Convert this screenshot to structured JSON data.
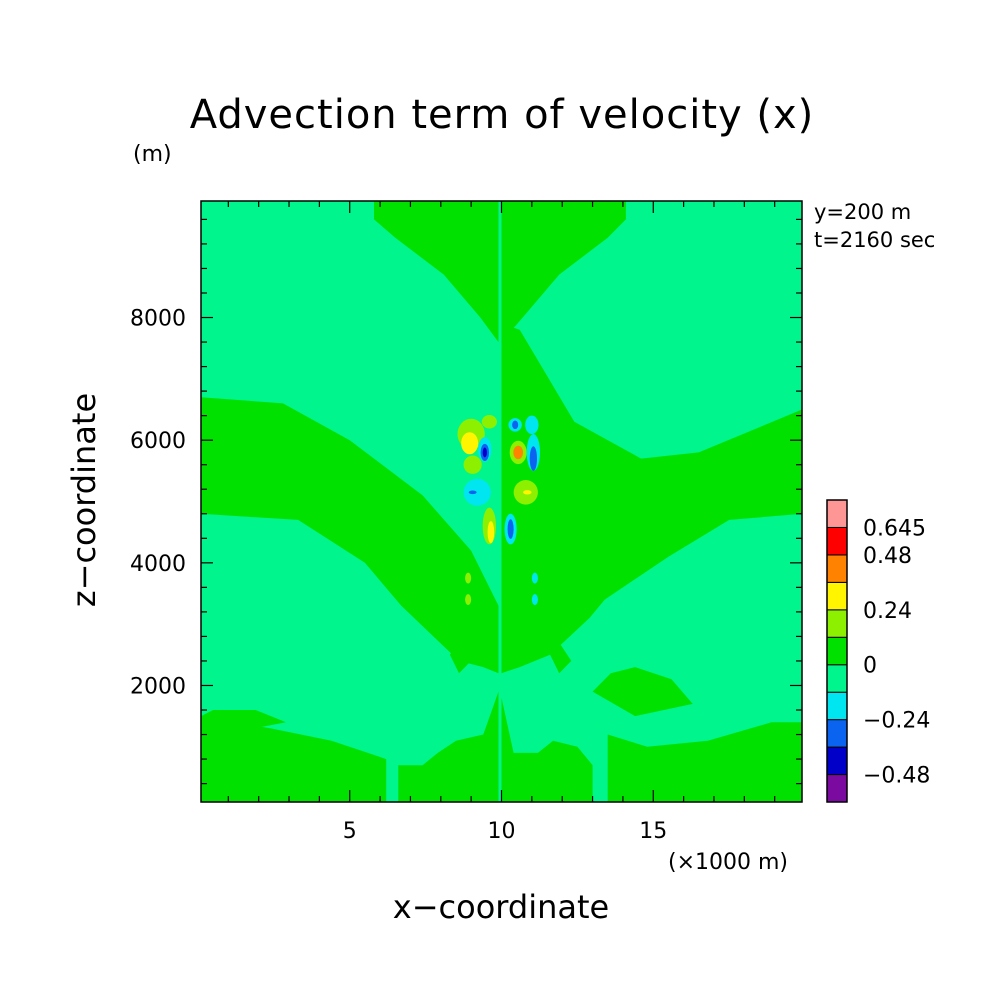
{
  "chart_data": {
    "type": "heatmap",
    "title": "Advection term of velocity (x)",
    "xlabel": "x−coordinate",
    "ylabel": "z−coordinate",
    "x_unit": "(×1000 m)",
    "y_unit": "(m)",
    "annotations": [
      "y=200 m",
      "t=2160 sec"
    ],
    "xlim": [
      0.1,
      19.9
    ],
    "ylim": [
      100,
      9900
    ],
    "x_ticks": [
      5,
      10,
      15
    ],
    "y_ticks": [
      2000,
      4000,
      6000,
      8000
    ],
    "colorbar": {
      "levels": [
        -0.645,
        -0.48,
        -0.36,
        -0.24,
        -0.12,
        0,
        0.12,
        0.24,
        0.36,
        0.48,
        0.645
      ],
      "labels": [
        "0.645",
        "0.48",
        "0.24",
        "0",
        "−0.24",
        "−0.48"
      ],
      "label_values": [
        0.645,
        0.48,
        0.24,
        0,
        -0.24,
        -0.48
      ],
      "colors": [
        "#7a0aa0",
        "#0000c8",
        "#0a64f0",
        "#00e6f0",
        "#00f58c",
        "#00e100",
        "#8cf000",
        "#fff500",
        "#ff8200",
        "#ff0000",
        "#ff9696"
      ]
    },
    "background_level": "#00f58c",
    "regions": [
      {
        "level": "#00e100",
        "points": [
          [
            5.8,
            9900
          ],
          [
            9.9,
            9900
          ],
          [
            9.9,
            7600
          ],
          [
            9.3,
            8000
          ],
          [
            8.1,
            8700
          ],
          [
            6.5,
            9300
          ],
          [
            5.8,
            9600
          ]
        ]
      },
      {
        "level": "#00e100",
        "points": [
          [
            10.0,
            9900
          ],
          [
            14.1,
            9900
          ],
          [
            14.1,
            9600
          ],
          [
            13.5,
            9300
          ],
          [
            11.9,
            8700
          ],
          [
            10.7,
            8000
          ],
          [
            10.0,
            7600
          ]
        ]
      },
      {
        "level": "#00e100",
        "points": [
          [
            10.0,
            7900
          ],
          [
            10.6,
            7800
          ],
          [
            11.2,
            7300
          ],
          [
            12.4,
            6300
          ],
          [
            14.6,
            5700
          ],
          [
            16.5,
            5800
          ],
          [
            19.9,
            6500
          ],
          [
            19.9,
            4800
          ],
          [
            17.5,
            4700
          ],
          [
            15.5,
            4100
          ],
          [
            13.4,
            3400
          ],
          [
            12.9,
            3100
          ],
          [
            11.6,
            2500
          ],
          [
            10.6,
            2300
          ],
          [
            10.0,
            2200
          ]
        ]
      },
      {
        "level": "#00e100",
        "points": [
          [
            0.1,
            6700
          ],
          [
            2.8,
            6600
          ],
          [
            5.0,
            6000
          ],
          [
            7.4,
            5100
          ],
          [
            9.0,
            4200
          ],
          [
            9.9,
            3300
          ],
          [
            9.9,
            2200
          ],
          [
            9.4,
            2300
          ],
          [
            8.6,
            2400
          ],
          [
            6.7,
            3300
          ],
          [
            5.5,
            4000
          ],
          [
            3.3,
            4700
          ],
          [
            0.1,
            4800
          ]
        ]
      },
      {
        "level": "#00e100",
        "points": [
          [
            10.0,
            2200
          ],
          [
            10.0,
            100
          ],
          [
            13.0,
            100
          ],
          [
            13.0,
            700
          ],
          [
            12.5,
            1000
          ],
          [
            11.7,
            1100
          ],
          [
            11.2,
            900
          ],
          [
            10.4,
            900
          ],
          [
            10.0,
            1800
          ]
        ]
      },
      {
        "level": "#00e100",
        "points": [
          [
            6.6,
            100
          ],
          [
            9.9,
            100
          ],
          [
            9.9,
            1900
          ],
          [
            9.4,
            1200
          ],
          [
            8.5,
            1100
          ],
          [
            7.9,
            900
          ],
          [
            7.4,
            700
          ],
          [
            6.6,
            700
          ]
        ]
      },
      {
        "level": "#00e100",
        "points": [
          [
            13.5,
            100
          ],
          [
            19.9,
            100
          ],
          [
            19.9,
            1400
          ],
          [
            18.9,
            1400
          ],
          [
            16.8,
            1100
          ],
          [
            14.8,
            1000
          ],
          [
            13.5,
            1200
          ]
        ]
      },
      {
        "level": "#00e100",
        "points": [
          [
            0.1,
            900
          ],
          [
            0.1,
            1500
          ],
          [
            2.4,
            1300
          ],
          [
            4.4,
            1100
          ],
          [
            6.2,
            800
          ],
          [
            6.2,
            100
          ],
          [
            0.1,
            100
          ]
        ]
      },
      {
        "level": "#00e100",
        "points": [
          [
            0.1,
            1500
          ],
          [
            0.5,
            1600
          ],
          [
            1.9,
            1600
          ],
          [
            2.9,
            1400
          ],
          [
            0.8,
            1200
          ]
        ]
      },
      {
        "level": "#00e100",
        "points": [
          [
            13.0,
            1900
          ],
          [
            13.6,
            2200
          ],
          [
            14.4,
            2300
          ],
          [
            15.6,
            2100
          ],
          [
            16.3,
            1700
          ],
          [
            14.4,
            1500
          ]
        ]
      },
      {
        "level": "#00e100",
        "points": [
          [
            11.6,
            2500
          ],
          [
            11.9,
            2700
          ],
          [
            12.3,
            2400
          ],
          [
            11.9,
            2200
          ]
        ]
      },
      {
        "level": "#00e100",
        "points": [
          [
            8.3,
            2500
          ],
          [
            8.6,
            2700
          ],
          [
            9.0,
            2400
          ],
          [
            8.6,
            2200
          ]
        ]
      },
      {
        "level": "#00e100",
        "points": [
          [
            0.1,
            200
          ],
          [
            5.4,
            200
          ],
          [
            5.6,
            800
          ],
          [
            0.1,
            900
          ]
        ]
      }
    ],
    "blobs": [
      {
        "cx": 9.0,
        "cy": 6100,
        "rx": 0.45,
        "ry": 250,
        "level": "#8cf000"
      },
      {
        "cx": 8.95,
        "cy": 5950,
        "rx": 0.28,
        "ry": 180,
        "level": "#fff500"
      },
      {
        "cx": 9.05,
        "cy": 5600,
        "rx": 0.3,
        "ry": 150,
        "level": "#8cf000"
      },
      {
        "cx": 9.45,
        "cy": 5850,
        "rx": 0.22,
        "ry": 200,
        "level": "#00e6f0"
      },
      {
        "cx": 9.45,
        "cy": 5800,
        "rx": 0.14,
        "ry": 140,
        "level": "#0a64f0"
      },
      {
        "cx": 9.45,
        "cy": 5800,
        "rx": 0.07,
        "ry": 80,
        "level": "#0000c8"
      },
      {
        "cx": 9.6,
        "cy": 6300,
        "rx": 0.25,
        "ry": 110,
        "level": "#8cf000"
      },
      {
        "cx": 10.55,
        "cy": 5800,
        "rx": 0.28,
        "ry": 190,
        "level": "#8cf000"
      },
      {
        "cx": 10.55,
        "cy": 5800,
        "rx": 0.16,
        "ry": 110,
        "level": "#ff8200"
      },
      {
        "cx": 10.45,
        "cy": 6250,
        "rx": 0.22,
        "ry": 110,
        "level": "#00e6f0"
      },
      {
        "cx": 10.45,
        "cy": 6250,
        "rx": 0.1,
        "ry": 70,
        "level": "#0a64f0"
      },
      {
        "cx": 11.05,
        "cy": 5800,
        "rx": 0.22,
        "ry": 300,
        "level": "#00e6f0"
      },
      {
        "cx": 11.05,
        "cy": 5700,
        "rx": 0.12,
        "ry": 200,
        "level": "#0a64f0"
      },
      {
        "cx": 11.0,
        "cy": 6250,
        "rx": 0.22,
        "ry": 150,
        "level": "#00e6f0"
      },
      {
        "cx": 9.2,
        "cy": 5150,
        "rx": 0.45,
        "ry": 220,
        "level": "#00e6f0"
      },
      {
        "cx": 9.05,
        "cy": 5150,
        "rx": 0.13,
        "ry": 30,
        "level": "#0a64f0"
      },
      {
        "cx": 10.8,
        "cy": 5150,
        "rx": 0.4,
        "ry": 200,
        "level": "#8cf000"
      },
      {
        "cx": 10.85,
        "cy": 5150,
        "rx": 0.14,
        "ry": 35,
        "level": "#fff500"
      },
      {
        "cx": 9.6,
        "cy": 4600,
        "rx": 0.22,
        "ry": 300,
        "level": "#8cf000"
      },
      {
        "cx": 9.65,
        "cy": 4500,
        "rx": 0.11,
        "ry": 180,
        "level": "#fff500"
      },
      {
        "cx": 10.3,
        "cy": 4550,
        "rx": 0.2,
        "ry": 250,
        "level": "#00e6f0"
      },
      {
        "cx": 10.3,
        "cy": 4550,
        "rx": 0.1,
        "ry": 160,
        "level": "#0a64f0"
      },
      {
        "cx": 8.9,
        "cy": 3750,
        "rx": 0.1,
        "ry": 90,
        "level": "#8cf000"
      },
      {
        "cx": 8.9,
        "cy": 3400,
        "rx": 0.1,
        "ry": 90,
        "level": "#8cf000"
      },
      {
        "cx": 11.1,
        "cy": 3750,
        "rx": 0.1,
        "ry": 90,
        "level": "#00e6f0"
      },
      {
        "cx": 11.1,
        "cy": 3400,
        "rx": 0.1,
        "ry": 90,
        "level": "#00e6f0"
      }
    ]
  }
}
